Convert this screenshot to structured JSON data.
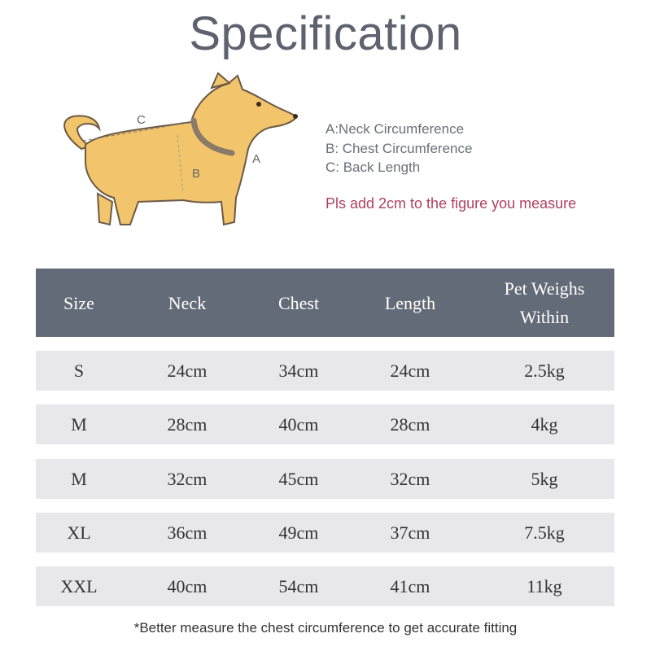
{
  "title": "Specification",
  "diagram": {
    "label_a": "A",
    "label_b": "B",
    "label_c": "C"
  },
  "legend": [
    "A:Neck Circumference",
    "B: Chest Circumference",
    "C: Back Length"
  ],
  "note": "Pls add 2cm to the figure you measure",
  "colors": {
    "header_bg": "#646b78",
    "row_bg": "#e8e8ea",
    "note": "#b0405e",
    "title": "#5d626e"
  },
  "table": {
    "headers": [
      "Size",
      "Neck",
      "Chest",
      "Length",
      "Pet Weighs Within"
    ],
    "rows": [
      [
        "S",
        "24cm",
        "34cm",
        "24cm",
        "2.5kg"
      ],
      [
        "M",
        "28cm",
        "40cm",
        "28cm",
        "4kg"
      ],
      [
        "M",
        "32cm",
        "45cm",
        "32cm",
        "5kg"
      ],
      [
        "XL",
        "36cm",
        "49cm",
        "37cm",
        "7.5kg"
      ],
      [
        "XXL",
        "40cm",
        "54cm",
        "41cm",
        "11kg"
      ]
    ]
  },
  "footnote": "*Better measure the chest circumference to get accurate fitting"
}
